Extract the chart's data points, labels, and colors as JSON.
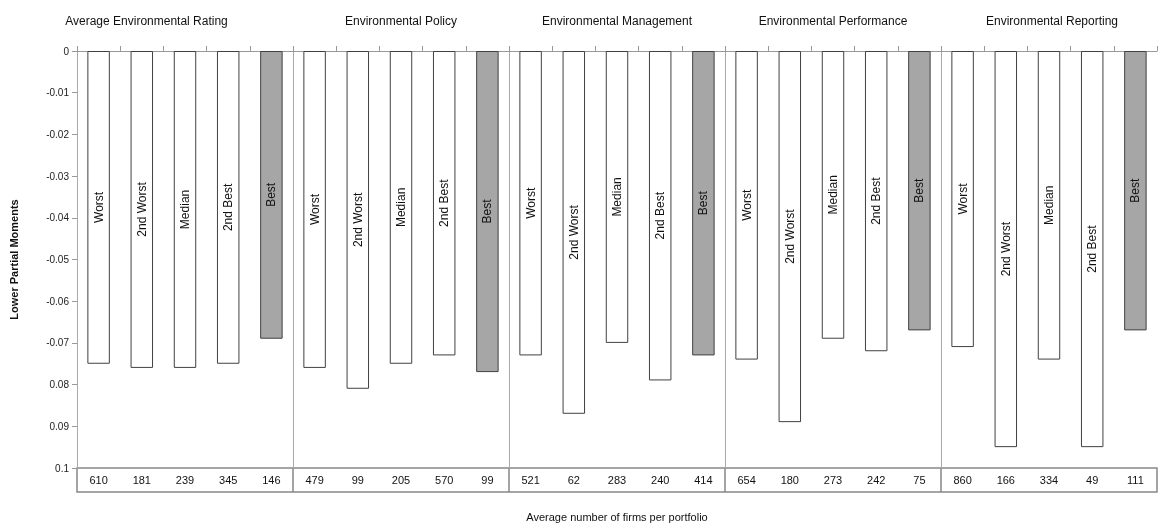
{
  "chart_data": [
    {
      "type": "bar",
      "title": "Average Environmental Rating",
      "ylabel": "Lower Partial Moments",
      "categories": [
        "Worst",
        "2nd Worst",
        "Median",
        "2nd Best",
        "Best"
      ],
      "values": [
        -0.075,
        -0.076,
        -0.076,
        -0.075,
        -0.069
      ],
      "colors": [
        "#ffffff",
        "#ffffff",
        "#ffffff",
        "#ffffff",
        "#a6a6a6"
      ],
      "ylim": [
        -0.1,
        0
      ],
      "yticks": [
        0,
        -0.01,
        -0.02,
        -0.03,
        -0.04,
        -0.05,
        -0.06,
        -0.07,
        {
          "value": -0.08,
          "label": "0.08"
        },
        {
          "value": -0.09,
          "label": "0.09"
        },
        {
          "value": -0.1,
          "label": "0.1"
        }
      ],
      "grid": false,
      "annotations": [
        "610",
        "181",
        "239",
        "345",
        "146"
      ]
    },
    {
      "type": "bar",
      "title": "Environmental Policy",
      "categories": [
        "Worst",
        "2nd Worst",
        "Median",
        "2nd Best",
        "Best"
      ],
      "values": [
        -0.076,
        -0.081,
        -0.075,
        -0.073,
        -0.077
      ],
      "colors": [
        "#ffffff",
        "#ffffff",
        "#ffffff",
        "#ffffff",
        "#a6a6a6"
      ],
      "ylim": [
        -0.1,
        0
      ],
      "grid": false,
      "tick_labels": "x",
      "annotations": [
        "479",
        "99",
        "205",
        "570",
        "99"
      ]
    },
    {
      "type": "bar",
      "title": "Environmental Management",
      "xlabel": "Average number of firms per portfolio",
      "categories": [
        "Worst",
        "2nd Worst",
        "Median",
        "2nd Best",
        "Best"
      ],
      "values": [
        -0.073,
        -0.087,
        -0.07,
        -0.079,
        -0.073
      ],
      "colors": [
        "#ffffff",
        "#ffffff",
        "#ffffff",
        "#ffffff",
        "#a6a6a6"
      ],
      "ylim": [
        -0.1,
        0
      ],
      "grid": false,
      "tick_labels": "x",
      "annotations": [
        "521",
        "62",
        "283",
        "240",
        "414"
      ]
    },
    {
      "type": "bar",
      "title": "Environmental Performance",
      "categories": [
        "Worst",
        "2nd Worst",
        "Median",
        "2nd Best",
        "Best"
      ],
      "values": [
        -0.074,
        -0.089,
        -0.069,
        -0.072,
        -0.067
      ],
      "colors": [
        "#ffffff",
        "#ffffff",
        "#ffffff",
        "#ffffff",
        "#a6a6a6"
      ],
      "ylim": [
        -0.1,
        0
      ],
      "grid": false,
      "tick_labels": "x",
      "annotations": [
        "654",
        "180",
        "273",
        "242",
        "75"
      ]
    },
    {
      "type": "bar",
      "title": "Environmental Reporting",
      "categories": [
        "Worst",
        "2nd Worst",
        "Median",
        "2nd Best",
        "Best"
      ],
      "values": [
        -0.071,
        -0.095,
        -0.074,
        -0.095,
        -0.067
      ],
      "colors": [
        "#ffffff",
        "#ffffff",
        "#ffffff",
        "#ffffff",
        "#a6a6a6"
      ],
      "ylim": [
        -0.1,
        0
      ],
      "grid": false,
      "tick_labels": "x",
      "annotations": [
        "860",
        "166",
        "334",
        "49",
        "111"
      ]
    }
  ]
}
